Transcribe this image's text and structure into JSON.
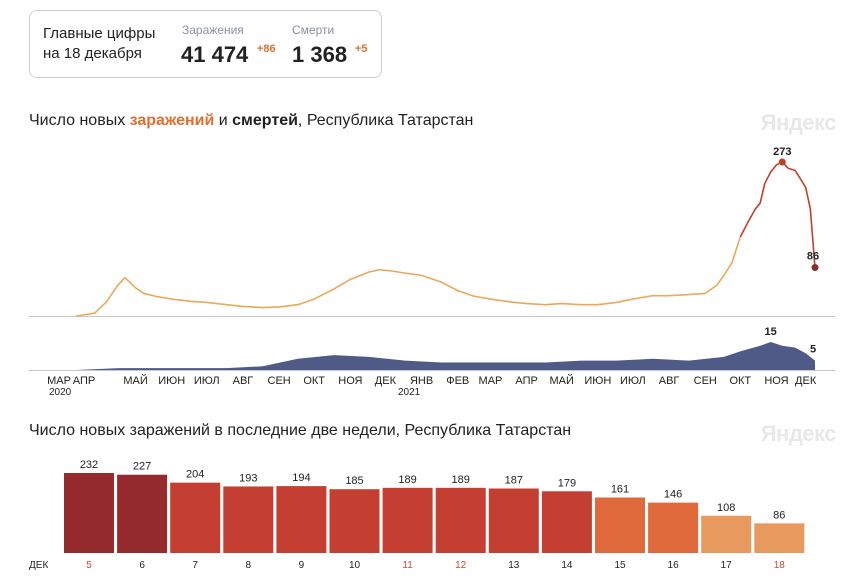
{
  "summary": {
    "title_line1": "Главные цифры",
    "title_line2": "на 18 декабря",
    "cases_label": "Заражения",
    "cases_value": "41 474",
    "cases_delta": "+86",
    "deaths_label": "Смерти",
    "deaths_value": "1 368",
    "deaths_delta": "+5"
  },
  "chart1": {
    "title_pre": "Число новых ",
    "title_cases": "заражений",
    "title_mid": " и ",
    "title_deaths": "смертей",
    "title_post": ", Республика Татарстан",
    "logo": "Яндекс"
  },
  "chart2": {
    "title": "Число новых заражений в последние две недели, Республика Татарстан",
    "logo": "Яндекс",
    "month_label": "ДЕК"
  },
  "colors": {
    "cases_line": "#e9a95b",
    "cases_recent": "#c0402a",
    "deaths_area": "#4f5a86",
    "accent": "#e0702f",
    "bar_dark": "#962b2e",
    "bar_red": "#c43f32",
    "bar_orange": "#e06a3c",
    "bar_light": "#e89a5e",
    "weekend_text": "#d8452d"
  },
  "chart_data": [
    {
      "type": "line",
      "title": "Число новых заражений и смертей, Республика Татарстан",
      "x_axis": {
        "ticks": [
          "МАР",
          "АПР",
          "МАЙ",
          "ИЮН",
          "ИЮЛ",
          "АВГ",
          "СЕН",
          "ОКТ",
          "НОЯ",
          "ДЕК",
          "ЯНВ",
          "ФЕВ",
          "МАР",
          "АПР",
          "МАЙ",
          "ИЮН",
          "ИЮЛ",
          "АВГ",
          "СЕН",
          "ОКТ",
          "НОЯ",
          "ДЕК"
        ],
        "year_labels": [
          "2020",
          "2021"
        ]
      },
      "series": [
        {
          "name": "заражений",
          "kind": "line",
          "x": [
            "2020-03-25",
            "2020-04-10",
            "2020-04-20",
            "2020-04-30",
            "2020-05-06",
            "2020-05-10",
            "2020-05-15",
            "2020-05-22",
            "2020-06-01",
            "2020-06-15",
            "2020-07-01",
            "2020-07-15",
            "2020-08-01",
            "2020-08-15",
            "2020-09-01",
            "2020-09-15",
            "2020-10-01",
            "2020-10-15",
            "2020-11-01",
            "2020-11-15",
            "2020-12-01",
            "2020-12-10",
            "2020-12-20",
            "2021-01-01",
            "2021-01-15",
            "2021-02-01",
            "2021-02-15",
            "2021-03-01",
            "2021-03-15",
            "2021-04-01",
            "2021-04-15",
            "2021-05-01",
            "2021-05-15",
            "2021-06-01",
            "2021-06-15",
            "2021-07-01",
            "2021-07-15",
            "2021-08-01",
            "2021-08-15",
            "2021-09-01",
            "2021-09-15",
            "2021-09-25",
            "2021-10-01",
            "2021-10-08",
            "2021-10-15",
            "2021-10-22",
            "2021-10-28",
            "2021-11-01",
            "2021-11-05",
            "2021-11-10",
            "2021-11-15",
            "2021-11-20",
            "2021-11-25",
            "2021-12-01",
            "2021-12-05",
            "2021-12-10",
            "2021-12-14",
            "2021-12-18"
          ],
          "y": [
            0,
            5,
            25,
            55,
            68,
            60,
            50,
            40,
            35,
            30,
            26,
            24,
            20,
            17,
            15,
            16,
            20,
            30,
            48,
            65,
            78,
            82,
            80,
            76,
            72,
            60,
            45,
            35,
            30,
            25,
            22,
            20,
            22,
            20,
            20,
            24,
            30,
            36,
            36,
            38,
            40,
            55,
            72,
            95,
            140,
            168,
            190,
            200,
            235,
            255,
            268,
            273,
            262,
            258,
            245,
            228,
            190,
            86
          ]
        },
        {
          "name": "смертей",
          "kind": "area",
          "x": [
            "2020-03-25",
            "2020-05-01",
            "2020-06-01",
            "2020-07-01",
            "2020-08-01",
            "2020-09-01",
            "2020-10-01",
            "2020-11-01",
            "2020-12-01",
            "2021-01-01",
            "2021-02-01",
            "2021-03-01",
            "2021-04-01",
            "2021-05-01",
            "2021-06-01",
            "2021-07-01",
            "2021-08-01",
            "2021-09-01",
            "2021-10-01",
            "2021-10-15",
            "2021-11-01",
            "2021-11-10",
            "2021-11-20",
            "2021-12-01",
            "2021-12-10",
            "2021-12-18"
          ],
          "y": [
            0,
            1,
            1,
            1,
            1,
            2,
            6,
            8,
            7,
            5,
            4,
            4,
            4,
            4,
            5,
            5,
            6,
            5,
            7,
            10,
            13,
            15,
            13,
            12,
            9,
            5
          ]
        }
      ],
      "annotations": [
        {
          "series": "заражений",
          "label": "273",
          "x": "2021-11-20",
          "y": 273
        },
        {
          "series": "заражений",
          "label": "86",
          "x": "2021-12-18",
          "y": 86
        },
        {
          "series": "смертей",
          "label": "15",
          "x": "2021-11-10",
          "y": 15
        },
        {
          "series": "смертей",
          "label": "5",
          "x": "2021-12-18",
          "y": 5
        }
      ]
    },
    {
      "type": "bar",
      "title": "Число новых заражений в последние две недели, Республика Татарстан",
      "categories": [
        "5",
        "6",
        "7",
        "8",
        "9",
        "10",
        "11",
        "12",
        "13",
        "14",
        "15",
        "16",
        "17",
        "18"
      ],
      "values": [
        232,
        227,
        204,
        193,
        194,
        185,
        189,
        189,
        187,
        179,
        161,
        146,
        108,
        86
      ],
      "weekend_categories": [
        "5",
        "11",
        "12",
        "18"
      ],
      "x_month_label": "ДЕК",
      "ylim": [
        0,
        232
      ]
    }
  ]
}
